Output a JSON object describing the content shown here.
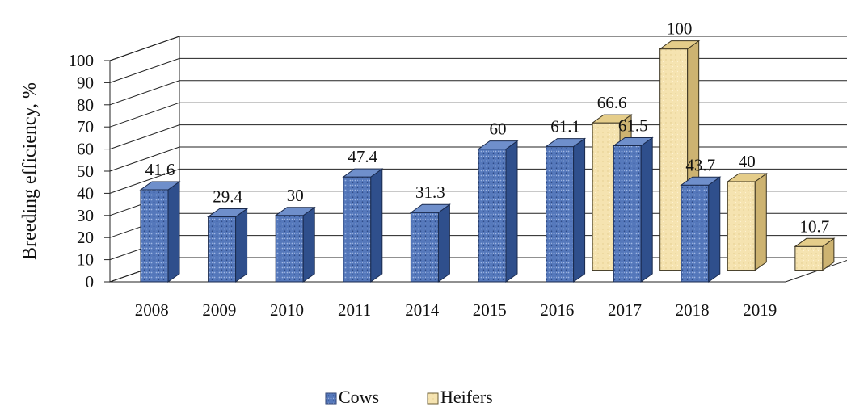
{
  "chart_data": {
    "type": "bar",
    "style": "3d-clustered-column",
    "ylabel": "Breeding efficiency, %",
    "xlabel": "",
    "ylim": [
      0,
      100
    ],
    "yticks": [
      "0",
      "10",
      "20",
      "30",
      "40",
      "50",
      "60",
      "70",
      "80",
      "90",
      "100"
    ],
    "grid": true,
    "legend_position": "bottom",
    "categories": [
      "2008",
      "2009",
      "2010",
      "2011",
      "2014",
      "2015",
      "2016",
      "2017",
      "2018",
      "2019"
    ],
    "series": [
      {
        "name": "Cows",
        "color": "#5b7fc0",
        "values": [
          41.6,
          29.4,
          30,
          47.4,
          31.3,
          60,
          61.1,
          61.5,
          43.7,
          null
        ],
        "labels": [
          "41.6",
          "29.4",
          "30",
          "47.4",
          "31.3",
          "60",
          "61.1",
          "61.5",
          "43.7",
          ""
        ]
      },
      {
        "name": "Heifers",
        "color": "#f2e1ad",
        "values": [
          null,
          null,
          null,
          null,
          null,
          null,
          66.6,
          100,
          40,
          10.7
        ],
        "labels": [
          "",
          "",
          "",
          "",
          "",
          "",
          "66.6",
          "100",
          "40",
          "10.7"
        ]
      }
    ]
  }
}
